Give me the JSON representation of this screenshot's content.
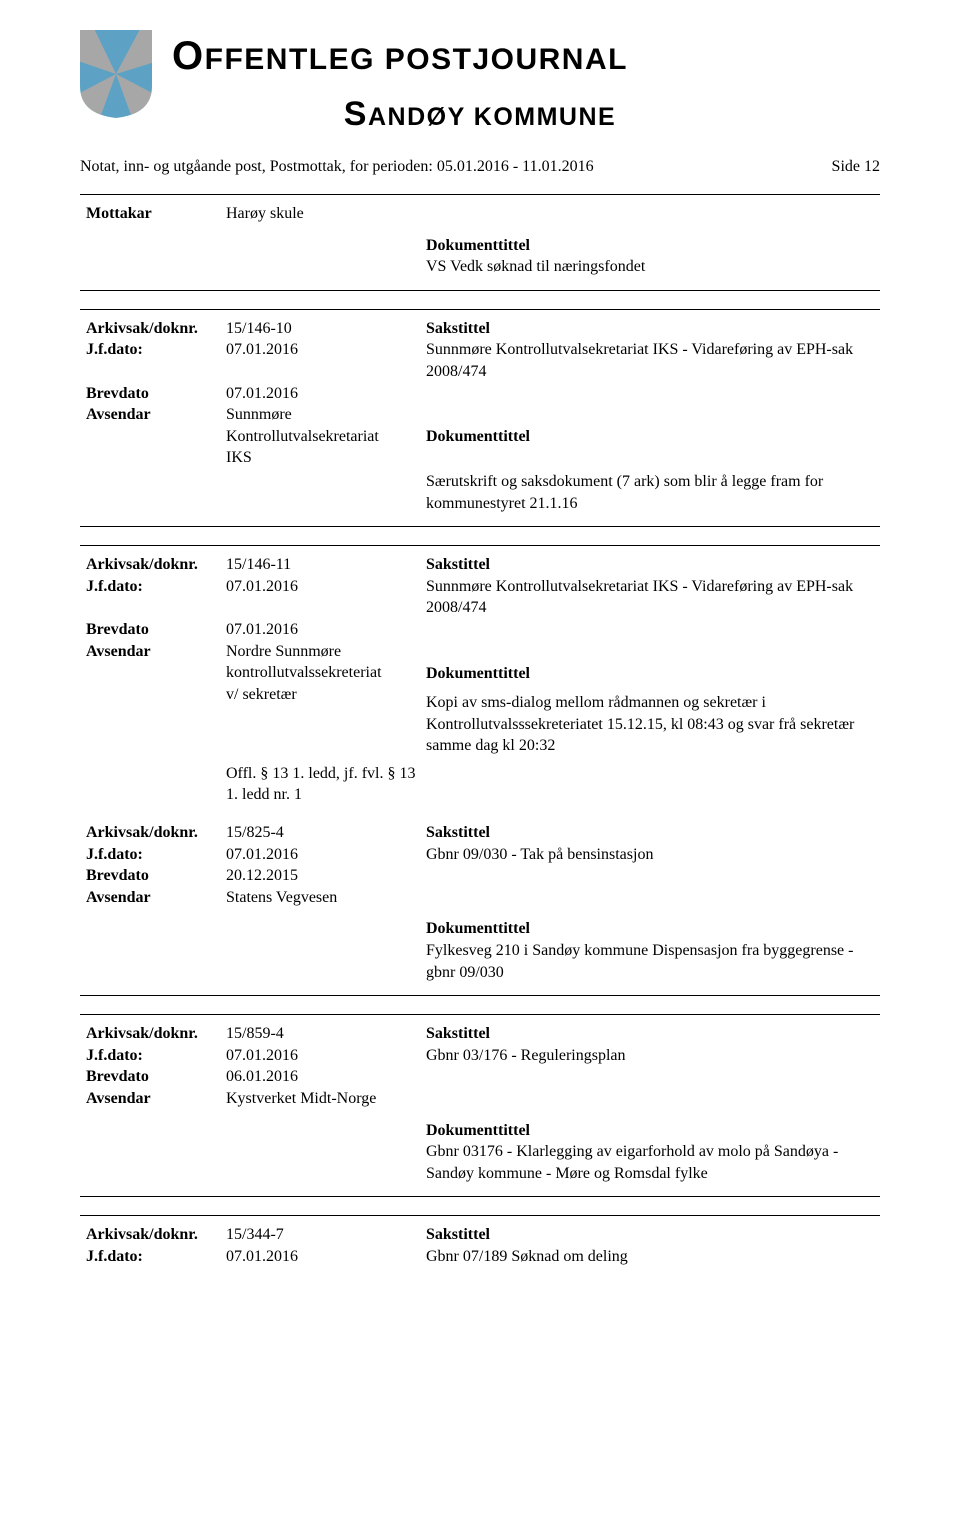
{
  "colors": {
    "shield_blue": "#5da2c5",
    "shield_gray": "#a7a7a7",
    "text": "#000000",
    "border": "#000000",
    "bg": "#ffffff"
  },
  "header": {
    "title_main_html": "<span class=\"cap\">O</span>FFENTLEG POSTJOURNAL",
    "title_sub_html": "<span class=\"cap\">S</span>ANDØY KOMMUNE",
    "meta_left": "Notat, inn- og utgåande post, Postmottak, for perioden: 05.01.2016 - 11.01.2016",
    "meta_right": "Side 12"
  },
  "labels": {
    "mottakar": "Mottakar",
    "arkivsak": "Arkivsak/doknr.",
    "jfdato": "J.f.dato:",
    "brevdato": "Brevdato",
    "avsendar": "Avsendar",
    "sakstittel": "Sakstittel",
    "dokumenttittel": "Dokumenttittel"
  },
  "block1": {
    "mottakar": "Harøy skule",
    "dok_body": "VS Vedk søknad til næringsfondet"
  },
  "block2": {
    "arkivsak": "15/146-10",
    "jfdato": "07.01.2016",
    "brevdato": "07.01.2016",
    "avsendar_lines": [
      "Sunnmøre",
      "Kontrollutvalsekretariat",
      "IKS"
    ],
    "sakstittel_body": "Sunnmøre Kontrollutvalsekretariat IKS - Vidareføring av EPH-sak 2008/474",
    "dok_body": "Særutskrift og saksdokument (7 ark) som blir å legge fram for kommunestyret 21.1.16"
  },
  "block3": {
    "arkivsak": "15/146-11",
    "jfdato": "07.01.2016",
    "brevdato": "07.01.2016",
    "avsendar_lines": [
      "Nordre Sunnmøre",
      "kontrollutvalssekreteriat",
      "v/ sekretær"
    ],
    "grading": "Offl. § 13 1. ledd, jf. fvl. § 13 1. ledd nr. 1",
    "sakstittel_body": "Sunnmøre Kontrollutvalsekretariat IKS - Vidareføring av EPH-sak 2008/474",
    "dok_body": "Kopi av sms-dialog mellom rådmannen og sekretær i Kontrollutvalsssekreteriatet 15.12.15, kl 08:43 og svar frå sekretær samme dag kl 20:32"
  },
  "block4": {
    "arkivsak": "15/825-4",
    "jfdato": "07.01.2016",
    "brevdato": "20.12.2015",
    "avsendar": "Statens Vegvesen",
    "sakstittel_body": "Gbnr 09/030 - Tak på bensinstasjon",
    "dok_body": "Fylkesveg 210 i Sandøy kommune Dispensasjon fra byggegrense - gbnr 09/030"
  },
  "block5": {
    "arkivsak": "15/859-4",
    "jfdato": "07.01.2016",
    "brevdato": "06.01.2016",
    "avsendar": "Kystverket Midt-Norge",
    "sakstittel_body": "Gbnr 03/176 - Reguleringsplan",
    "dok_body": "Gbnr 03176 - Klarlegging av eigarforhold av molo på Sandøya - Sandøy kommune - Møre og Romsdal fylke"
  },
  "block6": {
    "arkivsak": "15/344-7",
    "jfdato": "07.01.2016",
    "sakstittel_body": "Gbnr 07/189 Søknad om deling"
  }
}
